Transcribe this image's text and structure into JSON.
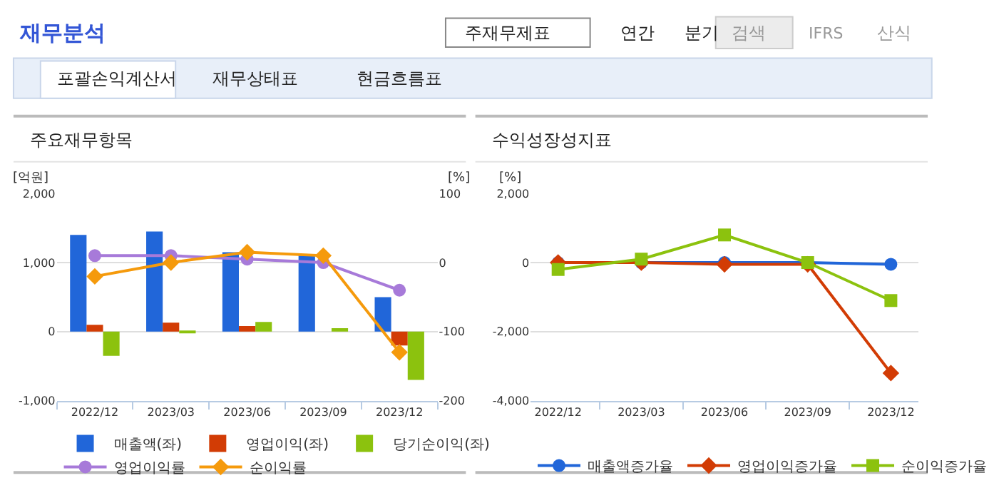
{
  "chart_data": [
    {
      "type": "bar",
      "title": "주요재무항목",
      "ylabel": "[억원]",
      "y2label": "[%]",
      "annotations": [
        "재무분석",
        "주재무제표",
        "연간",
        "분기",
        "검색",
        "IFRS",
        "산식",
        "포괄손익계산서",
        "재무상태표",
        "현금흐름표"
      ],
      "categories": [
        "2022/12",
        "2023/03",
        "2023/06",
        "2023/09",
        "2023/12"
      ],
      "series": [
        {
          "name": "매출액(좌)",
          "color": "#2166d9",
          "values": [
            1400,
            1450,
            1150,
            1100,
            500
          ]
        },
        {
          "name": "영업이익(좌)",
          "color": "#d23c05",
          "values": [
            100,
            130,
            80,
            0,
            -200
          ]
        },
        {
          "name": "당기순이익(좌)",
          "color": "#8cc20e",
          "values": [
            -350,
            -20,
            140,
            50,
            -700
          ]
        },
        {
          "name": "영업이익률",
          "type": "line",
          "axis": "y2",
          "marker": "circle",
          "color": "#a77ad9",
          "values": [
            10,
            10,
            5,
            0,
            -40
          ]
        },
        {
          "name": "순이익률",
          "type": "line",
          "axis": "y2",
          "marker": "diamond",
          "color": "#f59a0c",
          "values": [
            -20,
            0,
            15,
            10,
            -130
          ]
        }
      ],
      "ylim": [
        -1000,
        2000
      ],
      "yticks": [
        {
          "value": -1000,
          "label": "-1,000"
        },
        0,
        {
          "value": 1000,
          "label": "1,000"
        },
        {
          "value": 2000,
          "label": "2,000"
        }
      ],
      "y2lim": [
        -200,
        100
      ],
      "y2ticks": [
        -200,
        -100,
        0,
        100
      ],
      "grid": "y",
      "legend": "bottom"
    },
    {
      "type": "line",
      "title": "수익성장성지표",
      "ylabel": "[%]",
      "categories": [
        "2022/12",
        "2023/03",
        "2023/06",
        "2023/09",
        "2023/12"
      ],
      "series": [
        {
          "name": "매출액증가율",
          "marker": "circle",
          "color": "#2166d9",
          "values": [
            0,
            0,
            0,
            0,
            -50
          ]
        },
        {
          "name": "영업이익증가율",
          "marker": "diamond",
          "color": "#d23c05",
          "values": [
            0,
            0,
            -50,
            -50,
            -3200
          ]
        },
        {
          "name": "순이익증가율",
          "marker": "square",
          "color": "#8cc20e",
          "values": [
            -200,
            100,
            800,
            0,
            -1100
          ]
        }
      ],
      "ylim": [
        -4000,
        2000
      ],
      "yticks": [
        {
          "value": -4000,
          "label": "-4,000"
        },
        {
          "value": -2000,
          "label": "-2,000"
        },
        0,
        {
          "value": 2000,
          "label": "2,000"
        }
      ],
      "grid": "y",
      "legend": "bottom"
    }
  ]
}
